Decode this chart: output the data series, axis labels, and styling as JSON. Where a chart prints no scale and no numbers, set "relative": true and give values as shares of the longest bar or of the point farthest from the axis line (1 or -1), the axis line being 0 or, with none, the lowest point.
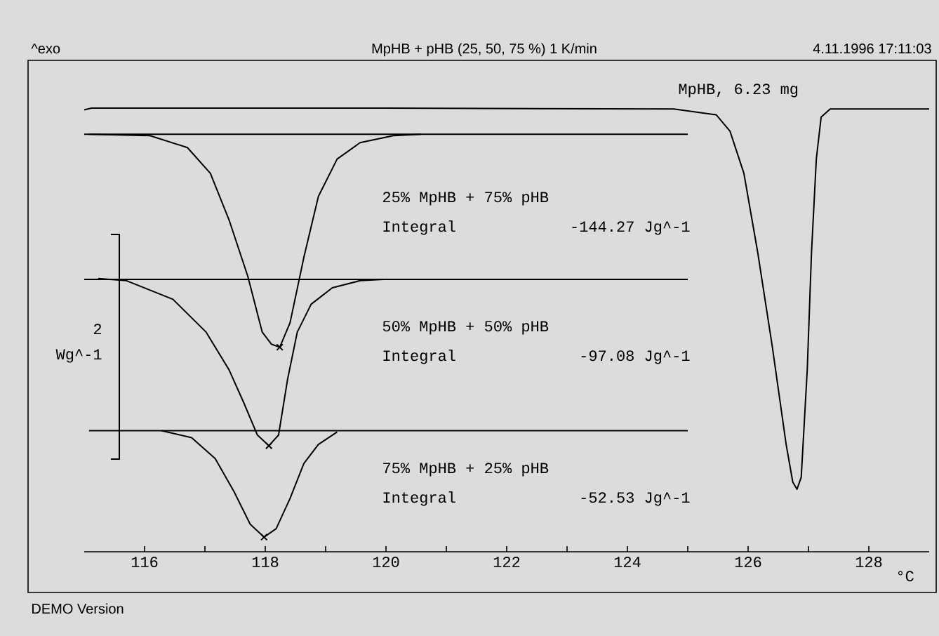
{
  "chart_data": {
    "type": "line",
    "relative": true,
    "title": "MpHB + pHB (25, 50, 75 %) 1 K/min",
    "xlabel": "°C",
    "marker": "none",
    "xlim": [
      115,
      129
    ],
    "xticks": [
      116,
      {
        "value": 117,
        "label": null
      },
      118,
      {
        "value": 119,
        "label": null
      },
      120,
      {
        "value": 121,
        "label": null
      },
      122,
      {
        "value": 123,
        "label": null
      },
      124,
      {
        "value": 125,
        "label": null
      },
      126,
      {
        "value": 127,
        "label": null
      },
      128
    ],
    "series": [
      {
        "name": "MpHB, 6.23 mg",
        "color": "#000000",
        "x": [
          115.0,
          115.12,
          120.0,
          124.77,
          125.47,
          125.7,
          125.93,
          126.16,
          126.4,
          126.63,
          126.74,
          126.81,
          126.88,
          126.98,
          127.05,
          127.13,
          127.21,
          127.36,
          129.0
        ],
        "values": [
          0.996,
          1.0,
          1.0,
          0.998,
          0.985,
          0.948,
          0.853,
          0.674,
          0.463,
          0.242,
          0.157,
          0.141,
          0.168,
          0.411,
          0.674,
          0.885,
          0.98,
          0.998,
          0.998
        ]
      },
      {
        "color": "#000000",
        "x": [
          115.08,
          116.09,
          116.71,
          117.09,
          117.4,
          117.71,
          117.95,
          118.1,
          118.24,
          118.41,
          118.64,
          118.88,
          119.19,
          119.57,
          120.12,
          120.58
        ],
        "values": [
          0.941,
          0.938,
          0.911,
          0.853,
          0.748,
          0.621,
          0.495,
          0.468,
          0.461,
          0.516,
          0.664,
          0.801,
          0.885,
          0.922,
          0.938,
          0.941
        ]
      },
      {
        "name": "50% MpHB + 50% pHB",
        "color": "#000000",
        "x": [
          115.23,
          115.7,
          116.47,
          117.02,
          117.4,
          117.64,
          117.87,
          118.06,
          118.22,
          118.37,
          118.53,
          118.76,
          119.11,
          119.57,
          119.96,
          120.5
        ],
        "values": [
          0.616,
          0.611,
          0.569,
          0.495,
          0.41,
          0.337,
          0.263,
          0.239,
          0.263,
          0.389,
          0.495,
          0.558,
          0.595,
          0.611,
          0.614,
          0.614
        ]
      },
      {
        "color": "#000000",
        "x": [
          116.28,
          116.78,
          117.17,
          117.48,
          117.75,
          117.98,
          118.18,
          118.41,
          118.64,
          118.88,
          119.19
        ],
        "values": [
          0.273,
          0.257,
          0.21,
          0.136,
          0.062,
          0.033,
          0.052,
          0.12,
          0.199,
          0.242,
          0.27
        ]
      },
      {
        "color": "#000000",
        "x": [
          115,
          125
        ],
        "values": [
          0.941,
          0.941
        ]
      },
      {
        "color": "#000000",
        "x": [
          115,
          125
        ],
        "values": [
          0.614,
          0.614
        ]
      },
      {
        "color": "#000000",
        "x": [
          115.08,
          125
        ],
        "values": [
          0.273,
          0.273
        ]
      },
      {
        "type": "scatter",
        "marker": "cross",
        "color": "#000000",
        "x": [
          118.24,
          118.06,
          117.98
        ],
        "values": [
          0.461,
          0.239,
          0.033
        ]
      }
    ],
    "annotations": [
      "^exo",
      "4.11.1996 17:11:03",
      "25% MpHB + 75% pHB",
      "75% MpHB + 25% pHB",
      "Integral",
      "-144.27 Jg^-1",
      "Integral",
      "-97.08 Jg^-1",
      "Integral",
      "-52.53 Jg^-1",
      "2",
      "Wg^-1",
      "DEMO Version"
    ]
  }
}
